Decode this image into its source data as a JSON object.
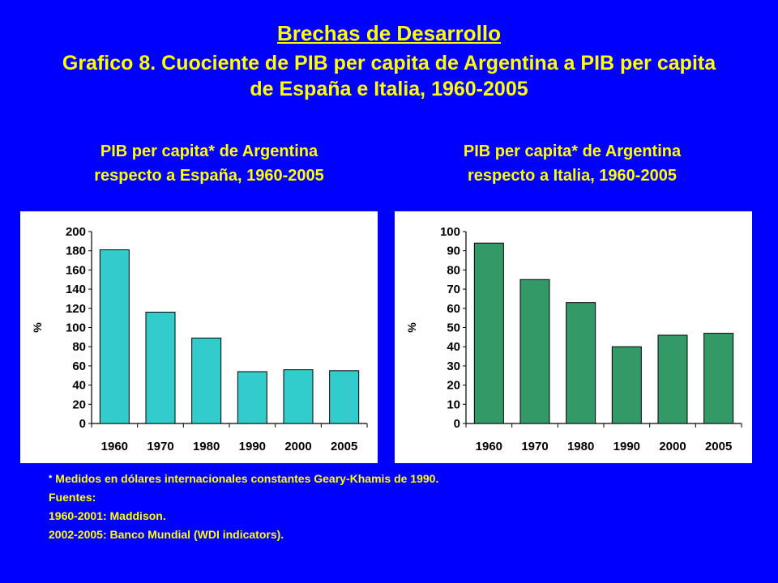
{
  "header": {
    "title": "Brechas de Desarrollo",
    "subtitle_line1": "Grafico 8. Cuociente de PIB per capita de Argentina a PIB per capita",
    "subtitle_line2": "de  España e Italia, 1960-2005"
  },
  "colors": {
    "background": "#0000FF",
    "text": "#FFFF00",
    "bar_left": "#33CCCC",
    "bar_right": "#339966"
  },
  "chart_data": [
    {
      "type": "bar",
      "title_line1": "PIB per capita* de Argentina",
      "title_line2": "respecto a  España, 1960-2005",
      "ylabel": "%",
      "categories": [
        "1960",
        "1970",
        "1980",
        "1990",
        "2000",
        "2005"
      ],
      "values": [
        181,
        116,
        89,
        54,
        56,
        55
      ],
      "ylim": [
        0,
        200
      ],
      "yticks": [
        0,
        20,
        40,
        60,
        80,
        100,
        120,
        140,
        160,
        180,
        200
      ],
      "color": "#33CCCC"
    },
    {
      "type": "bar",
      "title_line1": "PIB per capita* de Argentina",
      "title_line2": "respecto  a Italia, 1960-2005",
      "ylabel": "%",
      "categories": [
        "1960",
        "1970",
        "1980",
        "1990",
        "2000",
        "2005"
      ],
      "values": [
        94,
        75,
        63,
        40,
        46,
        47
      ],
      "ylim": [
        0,
        100
      ],
      "yticks": [
        0,
        10,
        20,
        30,
        40,
        50,
        60,
        70,
        80,
        90,
        100
      ],
      "color": "#339966"
    }
  ],
  "footnotes": {
    "asterisk": "*",
    "note": "Medidos en dólares internacionales constantes Geary-Khamis de 1990.",
    "sources_label": "Fuentes:",
    "source1": "1960-2001: Maddison.",
    "source2": "2002-2005: Banco Mundial (WDI indicators)."
  }
}
